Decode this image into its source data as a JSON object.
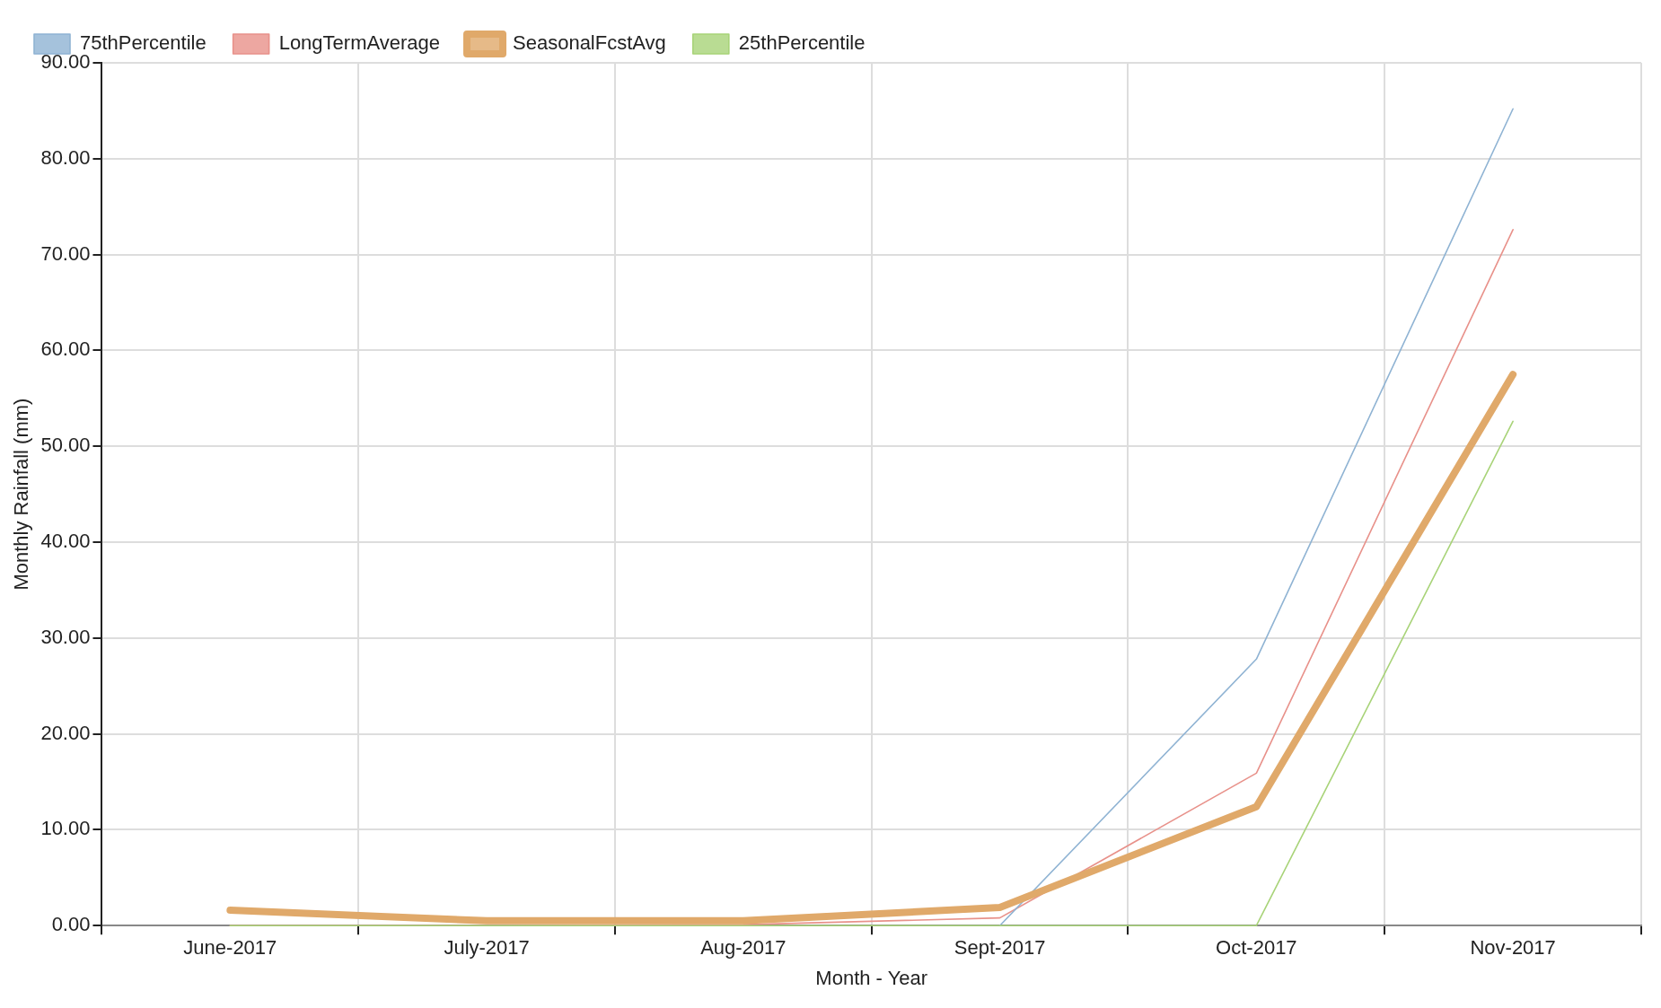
{
  "chart_data": {
    "type": "line",
    "xlabel": "Month - Year",
    "ylabel": "Monthly Rainfall (mm)",
    "categories": [
      "June-2017",
      "July-2017",
      "Aug-2017",
      "Sept-2017",
      "Oct-2017",
      "Nov-2017"
    ],
    "series": [
      {
        "name": "75thPercentile",
        "color": "#8fb3d3",
        "values": [
          null,
          null,
          null,
          0,
          27.8,
          85.2
        ]
      },
      {
        "name": "LongTermAverage",
        "color": "#e8918a",
        "values": [
          0,
          0,
          0.1,
          0.8,
          15.9,
          72.6
        ]
      },
      {
        "name": "SeasonalFcstAvg",
        "color": "#e0a96a",
        "values": [
          1.6,
          0.5,
          0.5,
          1.9,
          12.4,
          57.5
        ]
      },
      {
        "name": "25thPercentile",
        "color": "#a8d378",
        "values": [
          0,
          0,
          0,
          0,
          0,
          52.6
        ]
      }
    ],
    "ylim": [
      0,
      90
    ],
    "yticks": [
      {
        "value": 0,
        "label": "0.00"
      },
      {
        "value": 10,
        "label": "10.00"
      },
      {
        "value": 20,
        "label": "20.00"
      },
      {
        "value": 30,
        "label": "30.00"
      },
      {
        "value": 40,
        "label": "40.00"
      },
      {
        "value": 50,
        "label": "50.00"
      },
      {
        "value": 60,
        "label": "60.00"
      },
      {
        "value": 70,
        "label": "70.00"
      },
      {
        "value": 80,
        "label": "80.00"
      },
      {
        "value": 90,
        "label": "90.00"
      }
    ],
    "grid": true,
    "legend": "top left",
    "marker": "none",
    "line_style": "solid"
  }
}
